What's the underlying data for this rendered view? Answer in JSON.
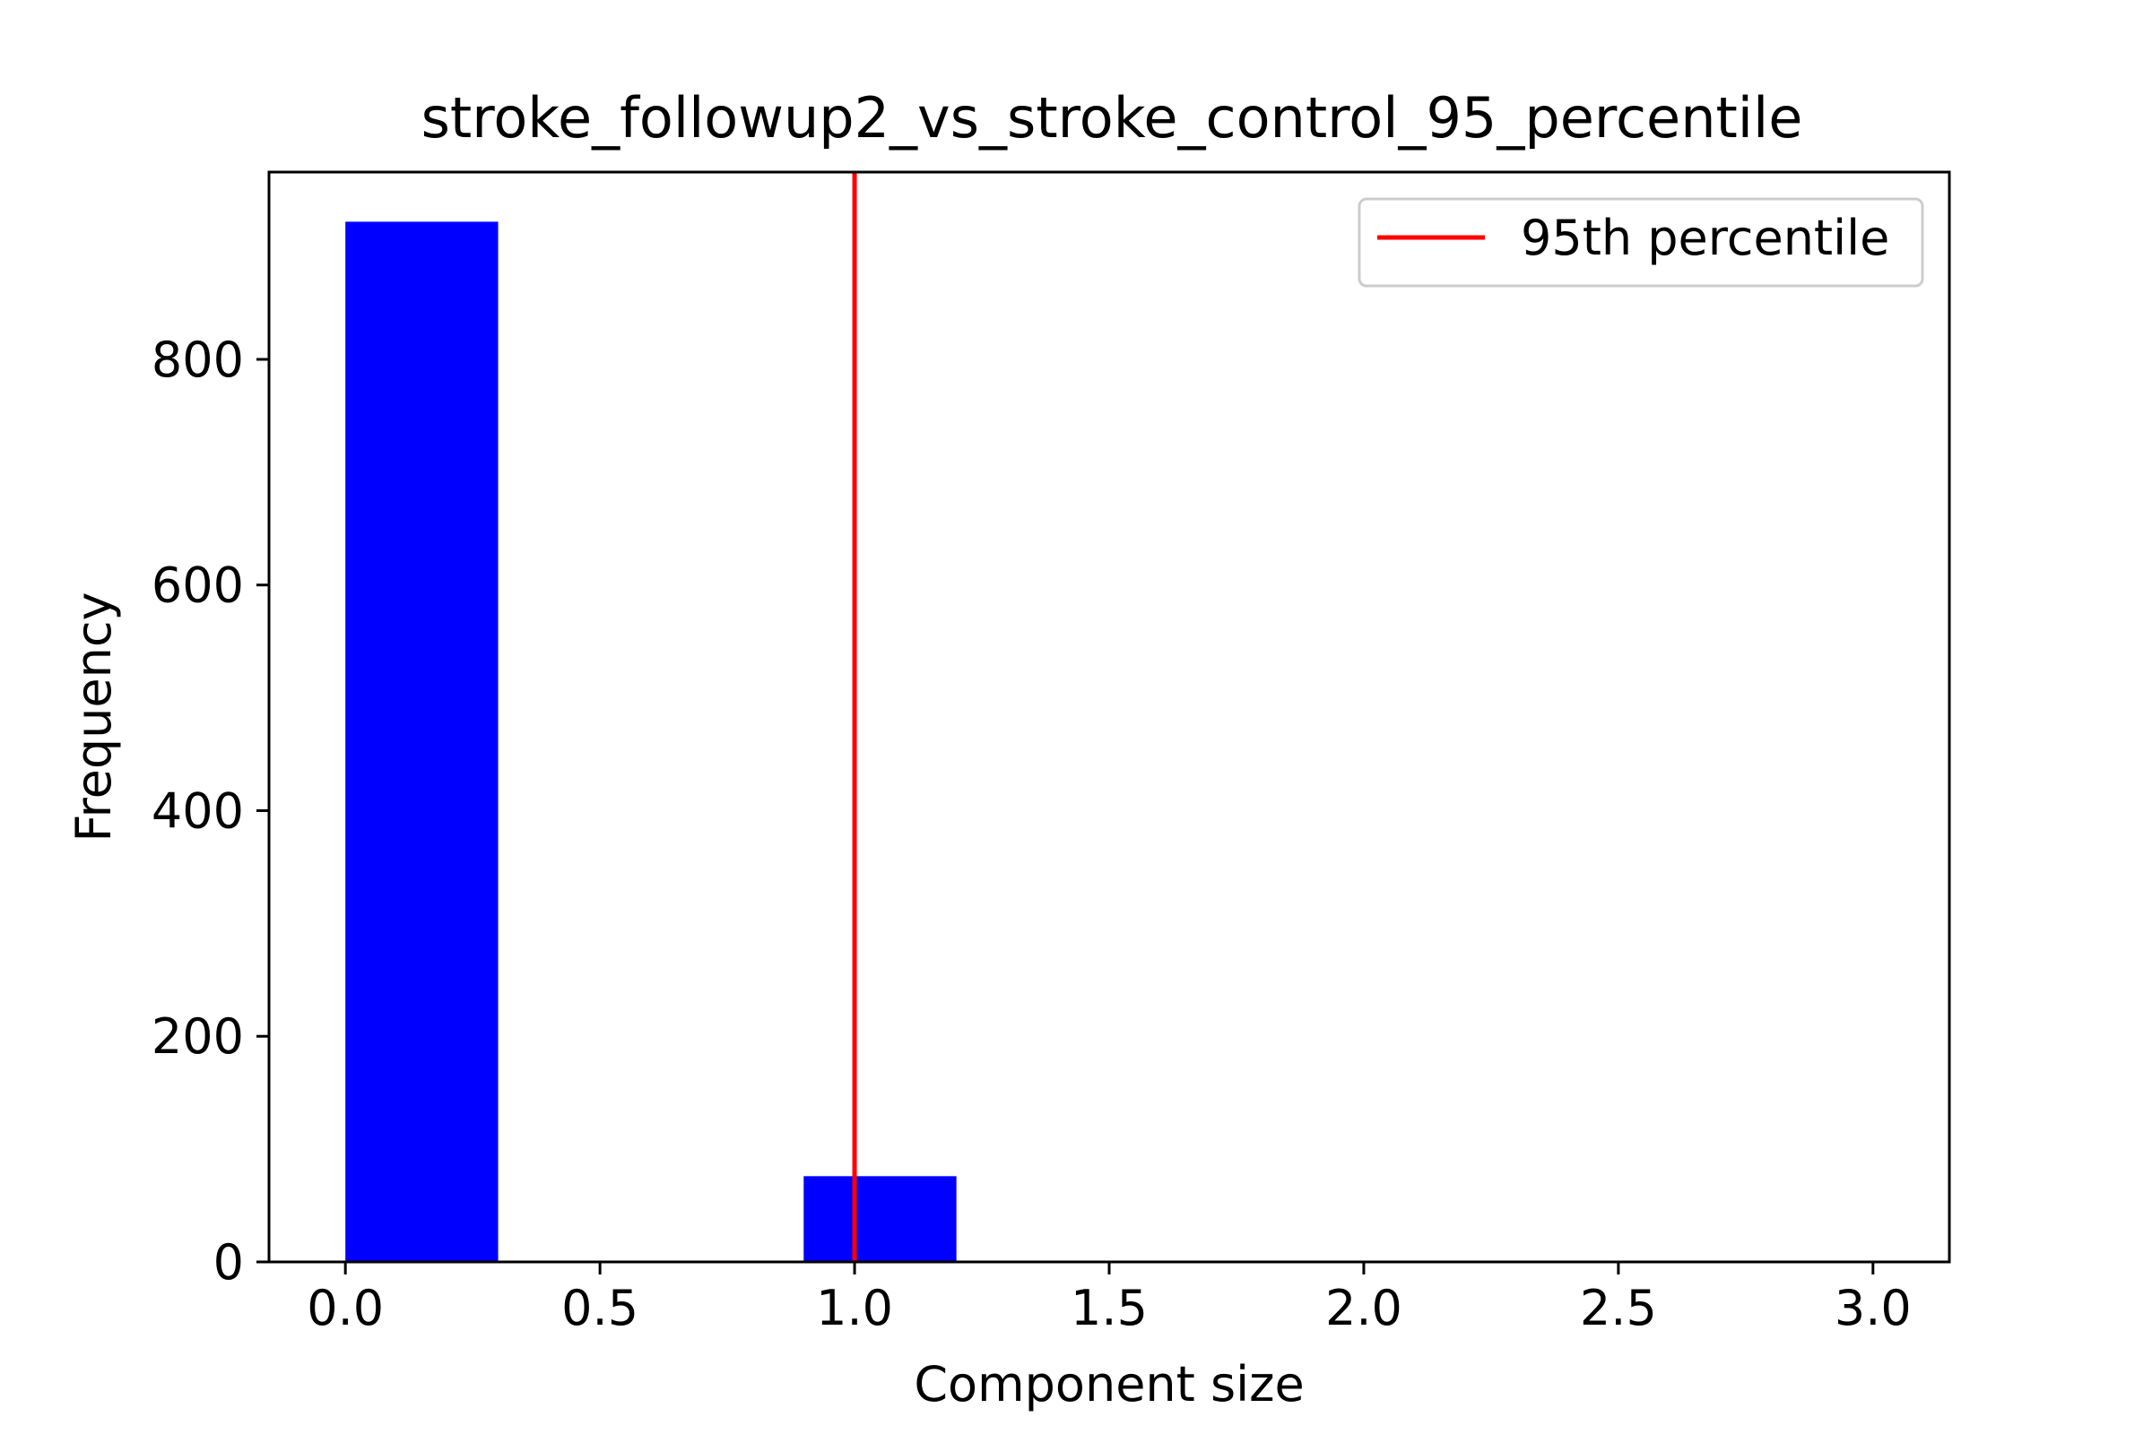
{
  "chart_data": {
    "type": "bar",
    "title": "stroke_followup2_vs_stroke_control_95_percentile",
    "xlabel": "Component size",
    "ylabel": "Frequency",
    "xlim": [
      -0.15,
      3.15
    ],
    "ylim": [
      0,
      966
    ],
    "xticks": [
      0.0,
      0.5,
      1.0,
      1.5,
      2.0,
      2.5,
      3.0
    ],
    "xtick_labels": [
      "0.0",
      "0.5",
      "1.0",
      "1.5",
      "2.0",
      "2.5",
      "3.0"
    ],
    "yticks": [
      0,
      200,
      400,
      600,
      800
    ],
    "ytick_labels": [
      "0",
      "200",
      "400",
      "600",
      "800"
    ],
    "grid": false,
    "bars": [
      {
        "x_start": 0.0,
        "x_end": 0.3,
        "value": 922
      },
      {
        "x_start": 0.9,
        "x_end": 1.2,
        "value": 76
      },
      {
        "x_start": 1.8,
        "x_end": 2.1,
        "value": 0
      },
      {
        "x_start": 2.7,
        "x_end": 3.0,
        "value": 0
      }
    ],
    "bar_color": "#0000ff",
    "vline": {
      "x": 1.0,
      "color": "#ff0000",
      "label": "95th percentile"
    },
    "legend": {
      "placement": "top-right",
      "entries": [
        "95th percentile"
      ]
    }
  }
}
